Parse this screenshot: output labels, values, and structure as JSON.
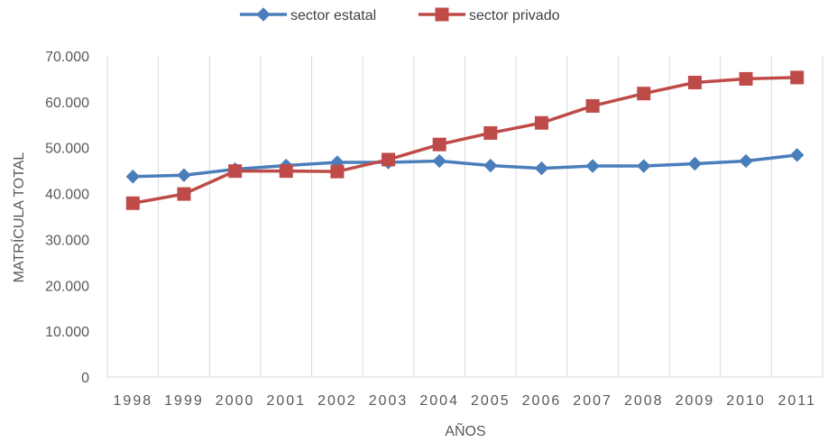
{
  "chart_data": {
    "type": "line",
    "title": "",
    "xlabel": "AÑOS",
    "ylabel": "MATRÍCULA TOTAL",
    "categories": [
      "1998",
      "1999",
      "2000",
      "2001",
      "2002",
      "2003",
      "2004",
      "2005",
      "2006",
      "2007",
      "2008",
      "2009",
      "2010",
      "2011"
    ],
    "ylim": [
      0,
      70000
    ],
    "yticks": [
      0,
      10000,
      20000,
      30000,
      40000,
      50000,
      60000,
      70000
    ],
    "ytick_labels": [
      "0",
      "10.000",
      "20.000",
      "30.000",
      "40.000",
      "50.000",
      "60.000",
      "70.000"
    ],
    "grid": "vertical",
    "legend": "top-center",
    "series": [
      {
        "name": "sector estatal",
        "color": "#4a7ebb",
        "marker": "diamond",
        "values": [
          43700,
          44000,
          45300,
          46100,
          46800,
          46800,
          47100,
          46100,
          45500,
          46000,
          46000,
          46500,
          47100,
          48400
        ]
      },
      {
        "name": "sector privado",
        "color": "#be4b48",
        "marker": "square",
        "values": [
          37900,
          39900,
          44900,
          44900,
          44800,
          47400,
          50700,
          53200,
          55400,
          59100,
          61800,
          64200,
          65000,
          65300
        ]
      }
    ]
  }
}
